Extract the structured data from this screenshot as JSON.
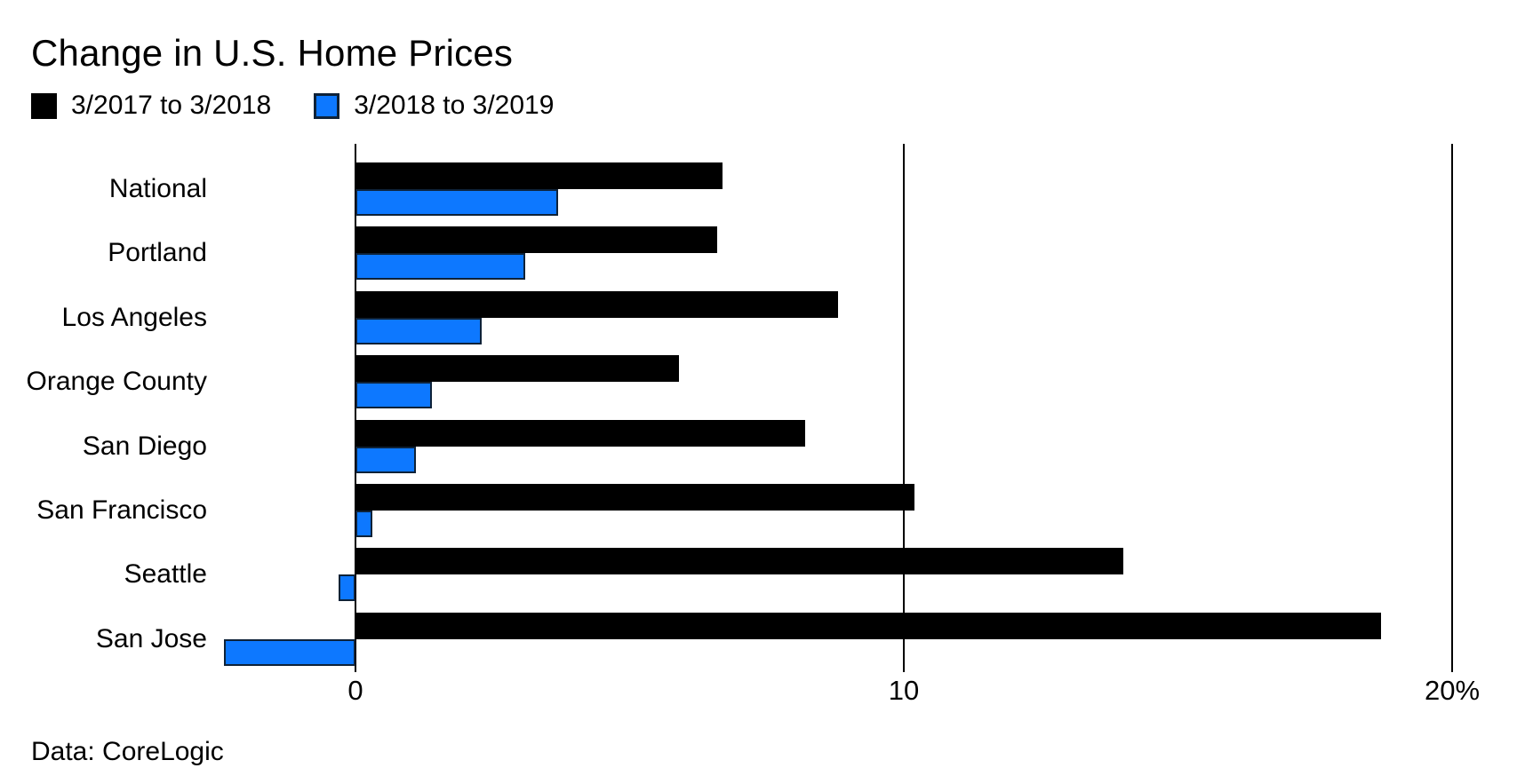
{
  "title": "Change in U.S. Home Prices",
  "legend": [
    {
      "label": "3/2017 to 3/2018",
      "color": "#000000"
    },
    {
      "label": "3/2018 to 3/2019",
      "color": "#0d78ff"
    }
  ],
  "source": "Data: CoreLogic",
  "colors": {
    "series_2017_2018": "#000000",
    "series_2018_2019": "#0d78ff",
    "blue_bar_border": "#0e2238",
    "gridline": "#000000",
    "background": "#ffffff",
    "text": "#000000"
  },
  "chart_data": {
    "type": "bar",
    "orientation": "horizontal",
    "title": "Change in U.S. Home Prices",
    "categories": [
      "National",
      "Portland",
      "Los Angeles",
      "Orange County",
      "San Diego",
      "San Francisco",
      "Seattle",
      "San Jose"
    ],
    "series": [
      {
        "name": "3/2017 to 3/2018",
        "color": "#000000",
        "values": [
          6.7,
          6.6,
          8.8,
          5.9,
          8.2,
          10.2,
          14.0,
          18.7
        ]
      },
      {
        "name": "3/2018 to 3/2019",
        "color": "#0d78ff",
        "values": [
          3.7,
          3.1,
          2.3,
          1.4,
          1.1,
          0.3,
          -0.3,
          -2.4
        ]
      }
    ],
    "xlabel": "",
    "ylabel": "",
    "x_ticks": [
      {
        "value": 0,
        "label": "0"
      },
      {
        "value": 10,
        "label": "10"
      },
      {
        "value": 20,
        "label": "20%"
      }
    ],
    "xlim": [
      -2.6,
      21.1
    ],
    "unit": "percent",
    "grid": "vertical-only",
    "legend_position": "top-left",
    "source": "Data: CoreLogic"
  }
}
